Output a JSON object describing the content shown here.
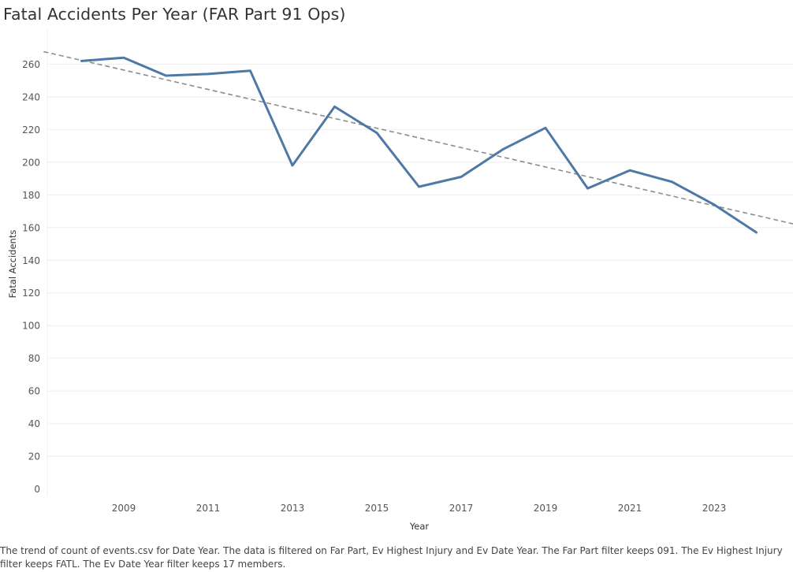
{
  "title": "Fatal Accidents Per Year (FAR Part 91 Ops)",
  "caption": "The trend of count of events.csv for Date Year. The data is filtered on Far Part, Ev Highest Injury and Ev Date Year. The Far Part filter keeps 091. The Ev Highest Injury filter keeps FATL. The Ev Date Year filter keeps 17 members.",
  "colors": {
    "series": "#4e79a7",
    "trend": "#8c8c8c",
    "grid": "#eeeeee"
  },
  "chart_data": {
    "type": "line",
    "xlabel": "Year",
    "ylabel": "Fatal Accidents",
    "x": [
      2008,
      2009,
      2010,
      2011,
      2012,
      2013,
      2014,
      2015,
      2016,
      2017,
      2018,
      2019,
      2020,
      2021,
      2022,
      2023,
      2024
    ],
    "series": [
      {
        "values": [
          262,
          264,
          253,
          254,
          256,
          198,
          234,
          218,
          185,
          191,
          208,
          221,
          184,
          195,
          188,
          174,
          157
        ]
      }
    ],
    "trend_line": {
      "style": "dashed",
      "x": [
        2007.1,
        2025.0
      ],
      "y": [
        267.7,
        161.5
      ]
    },
    "x_ticks": [
      2009,
      2011,
      2013,
      2015,
      2017,
      2019,
      2021,
      2023
    ],
    "y_ticks": [
      0,
      20,
      40,
      60,
      80,
      100,
      120,
      140,
      160,
      180,
      200,
      220,
      240,
      260
    ],
    "xlim": [
      2007.1,
      2025.0
    ],
    "ylim": [
      0,
      270
    ],
    "grid": "horizontal",
    "legend": "none"
  }
}
